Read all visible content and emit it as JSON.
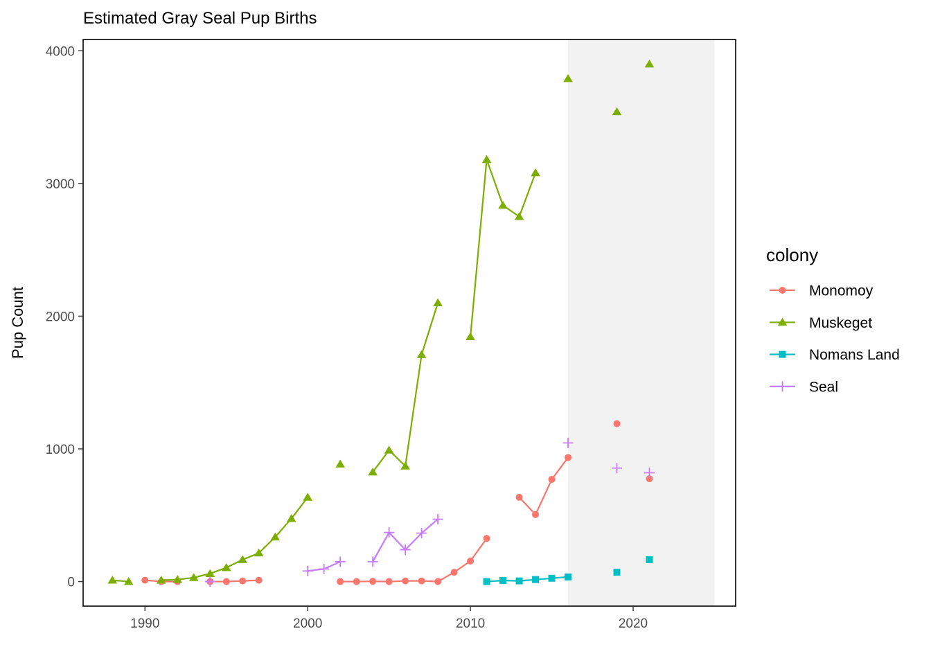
{
  "chart_data": {
    "type": "line",
    "title": "Estimated Gray Seal Pup Births",
    "xlabel": "",
    "ylabel": "Pup Count",
    "xlim": [
      1986.2,
      2026.3
    ],
    "ylim": [
      -185,
      4085
    ],
    "xticks": [
      1990,
      2000,
      2010,
      2020
    ],
    "yticks": [
      0,
      1000,
      2000,
      3000,
      4000
    ],
    "shaded_region": [
      2016,
      2025
    ],
    "shaded_color": "#f2f2f2",
    "legend": {
      "title": "colony",
      "position": "right"
    },
    "series": [
      {
        "name": "Monomoy",
        "color": "#F8766D",
        "shape": "circle",
        "points": [
          [
            1990,
            10
          ],
          [
            1991,
            0
          ],
          [
            1992,
            0
          ],
          [
            1994,
            0
          ],
          [
            1995,
            0
          ],
          [
            1996,
            5
          ],
          [
            1997,
            10
          ],
          [
            2002,
            0
          ],
          [
            2003,
            0
          ],
          [
            2004,
            2
          ],
          [
            2005,
            0
          ],
          [
            2006,
            5
          ],
          [
            2007,
            5
          ],
          [
            2008,
            0
          ],
          [
            2009,
            70
          ],
          [
            2010,
            155
          ],
          [
            2011,
            325
          ],
          [
            2013,
            635
          ],
          [
            2014,
            505
          ],
          [
            2015,
            770
          ],
          [
            2016,
            935
          ],
          [
            2019,
            1190
          ],
          [
            2021,
            775
          ]
        ]
      },
      {
        "name": "Muskeget",
        "color": "#7CAE00",
        "shape": "triangle",
        "points": [
          [
            1988,
            10
          ],
          [
            1989,
            0
          ],
          [
            1991,
            10
          ],
          [
            1992,
            15
          ],
          [
            1993,
            30
          ],
          [
            1994,
            60
          ],
          [
            1995,
            105
          ],
          [
            1996,
            165
          ],
          [
            1997,
            215
          ],
          [
            1998,
            335
          ],
          [
            1999,
            475
          ],
          [
            2000,
            635
          ],
          [
            2002,
            885
          ],
          [
            2004,
            825
          ],
          [
            2005,
            990
          ],
          [
            2006,
            870
          ],
          [
            2007,
            1710
          ],
          [
            2008,
            2100
          ],
          [
            2010,
            1845
          ],
          [
            2011,
            3180
          ],
          [
            2012,
            2835
          ],
          [
            2013,
            2750
          ],
          [
            2014,
            3080
          ],
          [
            2016,
            3790
          ],
          [
            2019,
            3540
          ],
          [
            2021,
            3900
          ]
        ]
      },
      {
        "name": "Nomans Land",
        "color": "#00BFC4",
        "shape": "square",
        "points": [
          [
            2011,
            0
          ],
          [
            2012,
            8
          ],
          [
            2013,
            5
          ],
          [
            2014,
            15
          ],
          [
            2015,
            25
          ],
          [
            2016,
            35
          ],
          [
            2019,
            70
          ],
          [
            2021,
            165
          ]
        ]
      },
      {
        "name": "Seal",
        "color": "#C77CFF",
        "shape": "plus",
        "points": [
          [
            1994,
            0
          ],
          [
            2000,
            80
          ],
          [
            2001,
            95
          ],
          [
            2002,
            150
          ],
          [
            2004,
            150
          ],
          [
            2005,
            370
          ],
          [
            2006,
            240
          ],
          [
            2007,
            365
          ],
          [
            2008,
            470
          ],
          [
            2016,
            1045
          ],
          [
            2019,
            855
          ],
          [
            2021,
            820
          ]
        ]
      }
    ]
  }
}
